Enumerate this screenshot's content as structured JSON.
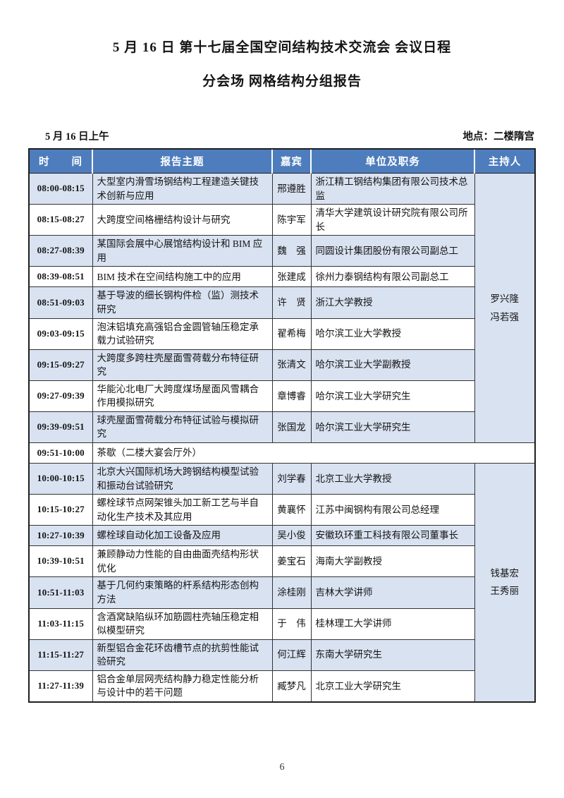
{
  "page": {
    "title_line1": "5 月 16 日 第十七届全国空间结构技术交流会 会议日程",
    "title_line2": "分会场 网格结构分组报告",
    "session_label": "5 月 16 日上午",
    "location_label": "地点：二楼隋宫",
    "page_number": "6"
  },
  "colors": {
    "header_bg": "#4e7dbd",
    "row_shade": "#d9e2f1",
    "border": "#333333"
  },
  "table": {
    "headers": [
      "时　　间",
      "报告主题",
      "嘉宾",
      "单位及职务",
      "主持人"
    ],
    "session1": {
      "chair_lines": [
        "罗兴隆",
        "冯若强"
      ],
      "rows": [
        {
          "time": "08:00-08:15",
          "topic": "大型室内滑雪场钢结构工程建造关键技术创新与应用",
          "guest": "邢遵胜",
          "affiliation": "浙江精工钢结构集团有限公司技术总监"
        },
        {
          "time": "08:15-08:27",
          "topic": "大跨度空间格栅结构设计与研究",
          "guest": "陈宇军",
          "affiliation": "清华大学建筑设计研究院有限公司所长"
        },
        {
          "time": "08:27-08:39",
          "topic": "某国际会展中心展馆结构设计和 BIM 应用",
          "guest": "魏　强",
          "affiliation": "同圆设计集团股份有限公司副总工"
        },
        {
          "time": "08:39-08:51",
          "topic": "BIM 技术在空间结构施工中的应用",
          "guest": "张建成",
          "affiliation": "徐州力泰钢结构有限公司副总工"
        },
        {
          "time": "08:51-09:03",
          "topic": "基于导波的细长钢构件检（监）测技术研究",
          "guest": "许　贤",
          "affiliation": "浙江大学教授"
        },
        {
          "time": "09:03-09:15",
          "topic": "泡沫铝填充高强铝合金圆管轴压稳定承载力试验研究",
          "guest": "翟希梅",
          "affiliation": "哈尔滨工业大学教授"
        },
        {
          "time": "09:15-09:27",
          "topic": "大跨度多跨柱壳屋面雪荷载分布特征研究",
          "guest": "张清文",
          "affiliation": "哈尔滨工业大学副教授"
        },
        {
          "time": "09:27-09:39",
          "topic": "华能沁北电厂大跨度煤场屋面风雪耦合作用模拟研究",
          "guest": "章博睿",
          "affiliation": "哈尔滨工业大学研究生"
        },
        {
          "time": "09:39-09:51",
          "topic": "球壳屋面雪荷载分布特征试验与模拟研究",
          "guest": "张国龙",
          "affiliation": "哈尔滨工业大学研究生"
        }
      ]
    },
    "break_row": {
      "time": "09:51-10:00",
      "label": "茶歇（二楼大宴会厅外）"
    },
    "session2": {
      "chair_lines": [
        "钱基宏",
        "王秀丽"
      ],
      "rows": [
        {
          "time": "10:00-10:15",
          "topic": "北京大兴国际机场大跨钢结构模型试验和振动台试验研究",
          "guest": "刘学春",
          "affiliation": "北京工业大学教授"
        },
        {
          "time": "10:15-10:27",
          "topic": "螺栓球节点网架锥头加工新工艺与半自动化生产技术及其应用",
          "guest": "黄襄怀",
          "affiliation": "江苏中闽钢构有限公司总经理"
        },
        {
          "time": "10:27-10:39",
          "topic": "螺栓球自动化加工设备及应用",
          "guest": "吴小俊",
          "affiliation": "安徽玖环重工科技有限公司董事长"
        },
        {
          "time": "10:39-10:51",
          "topic": "兼顾静动力性能的自由曲面壳结构形状优化",
          "guest": "姜宝石",
          "affiliation": "海南大学副教授"
        },
        {
          "time": "10:51-11:03",
          "topic": "基于几何约束策略的杆系结构形态创构方法",
          "guest": "涂桂刚",
          "affiliation": "吉林大学讲师"
        },
        {
          "time": "11:03-11:15",
          "topic": "含酒窝缺陷纵环加筋圆柱壳轴压稳定相似模型研究",
          "guest": "于　伟",
          "affiliation": "桂林理工大学讲师"
        },
        {
          "time": "11:15-11:27",
          "topic": "新型铝合金花环齿槽节点的抗剪性能试验研究",
          "guest": "何江辉",
          "affiliation": "东南大学研究生"
        },
        {
          "time": "11:27-11:39",
          "topic": "铝合金单层网壳结构静力稳定性能分析与设计中的若干问题",
          "guest": "臧梦凡",
          "affiliation": "北京工业大学研究生"
        }
      ]
    }
  }
}
